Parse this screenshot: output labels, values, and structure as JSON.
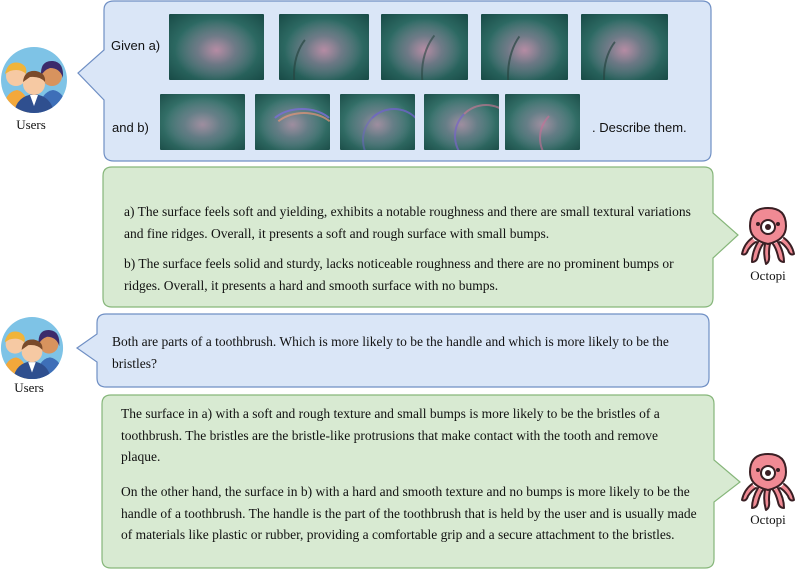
{
  "users_label": "Users",
  "octopi_label": "Octopi",
  "turn1": {
    "given_label": "Given a)",
    "and_label": "and b)",
    "describe_label": ". Describe them."
  },
  "answer1": {
    "para_a": "a) The surface feels soft and yielding, exhibits a notable roughness and there are small textural variations and fine ridges. Overall, it presents a soft and rough surface with small bumps.",
    "para_b": "b) The surface feels solid and sturdy, lacks noticeable roughness and there are no prominent bumps or ridges. Overall, it presents a hard and smooth surface with no bumps."
  },
  "question2": "Both are parts of a toothbrush. Which is more likely to be the handle and which is more likely to be the bristles?",
  "answer2": {
    "para_1": "The surface in a) with a soft and rough texture and small bumps is more likely to be the bristles of a toothbrush. The bristles are the bristle-like protrusions that make contact with the tooth and remove plaque.",
    "para_2": "On the other hand, the surface in b) with a hard and smooth texture and no bumps is more likely to be the handle of a toothbrush. The handle is the part of the toothbrush that is held by the user and is usually made of materials like plastic or rubber, providing a comfortable grip and a secure attachment to the bristles."
  },
  "colors": {
    "user_bubble_fill": "#dae6f7",
    "user_bubble_stroke": "#6f8fc4",
    "model_bubble_fill": "#d8ead2",
    "model_bubble_stroke": "#86b67a",
    "octopus": "#f08a94"
  },
  "tactile_a_frames": 5,
  "tactile_b_frames": 5
}
